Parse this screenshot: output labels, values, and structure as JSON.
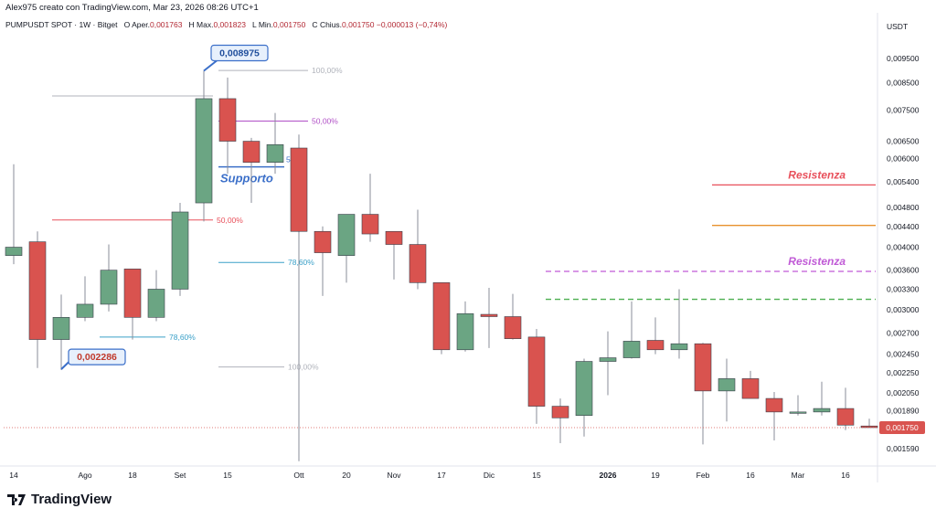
{
  "header": {
    "credit": "Alex975 creato con TradingView.com, Mar 23, 2026 08:26 UTC+1"
  },
  "ohlc": {
    "symbol": "PUMPUSDT SPOT · 1W · Bitget",
    "open_label": "O",
    "open_prefix": "Aper.",
    "open": "0,001763",
    "high_label": "H",
    "high_prefix": "Max.",
    "high": "0,001823",
    "low_label": "L",
    "low_prefix": "Min.",
    "low": "0,001750",
    "close_label": "C",
    "close_prefix": "Chius.",
    "close": "0,001750",
    "change": "−0,000013 (−0,74%)"
  },
  "footer": {
    "brand": "TradingView"
  },
  "colors": {
    "up": "#6ba583",
    "down": "#d9534f",
    "wick": "#8a8e99",
    "resistance": "#e8505b",
    "resistance2": "#b04fc6",
    "support": "#3b6fc9",
    "orange": "#e8912d",
    "green_dash": "#4caf50",
    "purple_dash": "#c05ad6",
    "fib_teal": "#3aa0c8",
    "fib_gray": "#b0b3bb",
    "callout": "#3b6fc9",
    "price_badge": "#d9534f"
  },
  "chart_data": {
    "type": "candlestick",
    "title": "PUMPUSDT SPOT · 1W · Bitget",
    "ylabel": "USDT",
    "y_scale": "log",
    "ylim": [
      0.00148,
      0.0105
    ],
    "y_ticks": [
      "0,009500",
      "0,008500",
      "0,007500",
      "0,006500",
      "0,006000",
      "0,005400",
      "0,004800",
      "0,004400",
      "0,004000",
      "0,003600",
      "0,003300",
      "0,003000",
      "0,002700",
      "0,002450",
      "0,002250",
      "0,002050",
      "0,001890",
      "0,001590"
    ],
    "y_tick_values": [
      0.0095,
      0.0085,
      0.0075,
      0.0065,
      0.006,
      0.0054,
      0.0048,
      0.0044,
      0.004,
      0.0036,
      0.0033,
      0.003,
      0.0027,
      0.00245,
      0.00225,
      0.00205,
      0.00189,
      0.00159
    ],
    "x_ticks": [
      {
        "label": "14",
        "index": 0
      },
      {
        "label": "Ago",
        "index": 3
      },
      {
        "label": "18",
        "index": 5
      },
      {
        "label": "Set",
        "index": 7
      },
      {
        "label": "15",
        "index": 9
      },
      {
        "label": "Ott",
        "index": 12
      },
      {
        "label": "20",
        "index": 14
      },
      {
        "label": "Nov",
        "index": 16
      },
      {
        "label": "17",
        "index": 18
      },
      {
        "label": "Dic",
        "index": 20
      },
      {
        "label": "15",
        "index": 22
      },
      {
        "label": "2026",
        "index": 25
      },
      {
        "label": "19",
        "index": 27
      },
      {
        "label": "Feb",
        "index": 29
      },
      {
        "label": "16",
        "index": 31
      },
      {
        "label": "Mar",
        "index": 33
      },
      {
        "label": "16",
        "index": 35
      }
    ],
    "candles": [
      {
        "o": 0.00385,
        "h": 0.00585,
        "l": 0.0037,
        "c": 0.004
      },
      {
        "o": 0.0041,
        "h": 0.0043,
        "l": 0.0023,
        "c": 0.00262
      },
      {
        "o": 0.00262,
        "h": 0.00322,
        "l": 0.00228,
        "c": 0.0029
      },
      {
        "o": 0.0029,
        "h": 0.0035,
        "l": 0.00285,
        "c": 0.00308
      },
      {
        "o": 0.00308,
        "h": 0.00405,
        "l": 0.00298,
        "c": 0.0036
      },
      {
        "o": 0.00362,
        "h": 0.00362,
        "l": 0.00262,
        "c": 0.0029
      },
      {
        "o": 0.0029,
        "h": 0.0036,
        "l": 0.00285,
        "c": 0.0033
      },
      {
        "o": 0.0033,
        "h": 0.0049,
        "l": 0.0032,
        "c": 0.0047
      },
      {
        "o": 0.0049,
        "h": 0.008975,
        "l": 0.0045,
        "c": 0.0079
      },
      {
        "o": 0.0079,
        "h": 0.0087,
        "l": 0.0056,
        "c": 0.0065
      },
      {
        "o": 0.0065,
        "h": 0.0066,
        "l": 0.0049,
        "c": 0.0059
      },
      {
        "o": 0.0059,
        "h": 0.0074,
        "l": 0.0056,
        "c": 0.0064
      },
      {
        "o": 0.0063,
        "h": 0.0067,
        "l": 0.0015,
        "c": 0.0043
      },
      {
        "o": 0.0043,
        "h": 0.0044,
        "l": 0.0032,
        "c": 0.0039
      },
      {
        "o": 0.00385,
        "h": 0.00465,
        "l": 0.0034,
        "c": 0.00465
      },
      {
        "o": 0.00465,
        "h": 0.0056,
        "l": 0.0041,
        "c": 0.00425
      },
      {
        "o": 0.0043,
        "h": 0.0043,
        "l": 0.00345,
        "c": 0.00405
      },
      {
        "o": 0.00405,
        "h": 0.00475,
        "l": 0.0033,
        "c": 0.0034
      },
      {
        "o": 0.0034,
        "h": 0.0034,
        "l": 0.00245,
        "c": 0.0025
      },
      {
        "o": 0.0025,
        "h": 0.00312,
        "l": 0.00248,
        "c": 0.00295
      },
      {
        "o": 0.00294,
        "h": 0.00332,
        "l": 0.00252,
        "c": 0.00291
      },
      {
        "o": 0.00291,
        "h": 0.00323,
        "l": 0.00262,
        "c": 0.00263
      },
      {
        "o": 0.00265,
        "h": 0.00275,
        "l": 0.00178,
        "c": 0.00193
      },
      {
        "o": 0.00193,
        "h": 0.002,
        "l": 0.00163,
        "c": 0.00183
      },
      {
        "o": 0.00185,
        "h": 0.0024,
        "l": 0.00168,
        "c": 0.00237
      },
      {
        "o": 0.00237,
        "h": 0.00272,
        "l": 0.00203,
        "c": 0.00241
      },
      {
        "o": 0.00241,
        "h": 0.00312,
        "l": 0.0024,
        "c": 0.0026
      },
      {
        "o": 0.00261,
        "h": 0.0029,
        "l": 0.00245,
        "c": 0.0025
      },
      {
        "o": 0.0025,
        "h": 0.0033,
        "l": 0.0024,
        "c": 0.00257
      },
      {
        "o": 0.00257,
        "h": 0.00258,
        "l": 0.00162,
        "c": 0.00207
      },
      {
        "o": 0.00207,
        "h": 0.0024,
        "l": 0.0018,
        "c": 0.00219
      },
      {
        "o": 0.00219,
        "h": 0.00227,
        "l": 0.002,
        "c": 0.002
      },
      {
        "o": 0.002,
        "h": 0.00206,
        "l": 0.00165,
        "c": 0.00188
      },
      {
        "o": 0.00188,
        "h": 0.00203,
        "l": 0.00185,
        "c": 0.00188
      },
      {
        "o": 0.00188,
        "h": 0.00216,
        "l": 0.00185,
        "c": 0.00191
      },
      {
        "o": 0.00191,
        "h": 0.0021,
        "l": 0.00173,
        "c": 0.00177
      },
      {
        "o": 0.001763,
        "h": 0.001823,
        "l": 0.00175,
        "c": 0.00175
      }
    ],
    "current_price": {
      "label": "0,001750",
      "value": 0.00175
    },
    "callouts": [
      {
        "text": "0,008975",
        "value": 0.008975,
        "index": 8,
        "side": "above"
      },
      {
        "text": "0,002286",
        "value": 0.002286,
        "index": 2,
        "side": "below"
      }
    ],
    "fib_levels": [
      {
        "label": "100,00%",
        "value": 0.00899,
        "from": 9,
        "to": 12,
        "color": "fib_gray"
      },
      {
        "label": "50,00%",
        "value": 0.00713,
        "from": 9,
        "to": 12,
        "color": "resistance2"
      },
      {
        "label": "",
        "value": 0.008,
        "from": 2,
        "to": 8,
        "color": "fib_gray"
      },
      {
        "label": "50,00%",
        "value": 0.00453,
        "from": 2,
        "to": 8,
        "color": "resistance"
      },
      {
        "label": "78,60%",
        "value": 0.00373,
        "from": 9,
        "to": 11,
        "color": "fib_teal"
      },
      {
        "label": "78,60%",
        "value": 0.00265,
        "from": 4,
        "to": 6,
        "color": "fib_teal"
      },
      {
        "label": "100,00%",
        "value": 0.00231,
        "from": 9,
        "to": 11,
        "color": "fib_gray"
      }
    ],
    "support": {
      "label": "Supporto",
      "value": 0.00578,
      "from": 9,
      "to": 11,
      "tag": "50"
    },
    "resistances": [
      {
        "label": "Resistenza",
        "value": 0.00532,
        "from": 29,
        "to": 37,
        "style": "solid",
        "color": "resistance"
      },
      {
        "label": "",
        "value": 0.00442,
        "from": 29,
        "to": 37,
        "style": "solid",
        "color": "orange"
      },
      {
        "label": "Resistenza",
        "value": 0.00358,
        "from": 22,
        "to": 37,
        "style": "dashed",
        "color": "purple_dash"
      },
      {
        "label": "",
        "value": 0.00315,
        "from": 22,
        "to": 37,
        "style": "dashed",
        "color": "green_dash"
      }
    ]
  }
}
